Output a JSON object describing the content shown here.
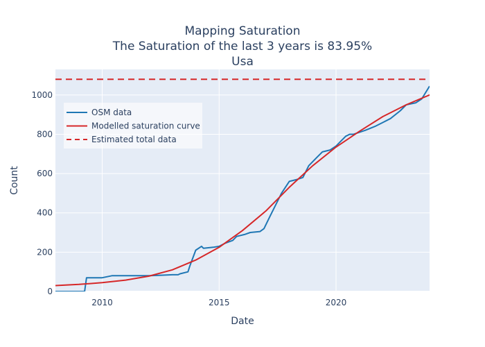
{
  "chart_data": {
    "type": "line",
    "title": [
      "Mapping Saturation",
      "The Saturation of the last 3 years is 83.95%",
      "Usa"
    ],
    "xlabel": "Date",
    "ylabel": "Count",
    "xlim": [
      "2008-01-01",
      "2024-01-01"
    ],
    "ylim": [
      0,
      1130
    ],
    "xticks": [
      {
        "label": "2010",
        "date": "2010-01-01"
      },
      {
        "label": "2015",
        "date": "2015-01-01"
      },
      {
        "label": "2020",
        "date": "2020-01-01"
      }
    ],
    "yticks": [
      0,
      200,
      400,
      600,
      800,
      1000
    ],
    "grid": true,
    "legend": "top-left",
    "series": [
      {
        "name": "OSM data",
        "color": "#1f77b4",
        "style": "solid",
        "x": [
          "2008-01-01",
          "2009-04-01",
          "2009-05-01",
          "2010-01-01",
          "2010-06-01",
          "2011-01-01",
          "2011-06-01",
          "2012-01-01",
          "2012-06-01",
          "2013-01-01",
          "2013-04-01",
          "2013-05-01",
          "2013-09-01",
          "2013-10-01",
          "2014-01-01",
          "2014-04-01",
          "2014-05-01",
          "2014-10-01",
          "2015-01-01",
          "2015-04-01",
          "2015-08-01",
          "2015-10-01",
          "2016-02-01",
          "2016-05-01",
          "2016-10-01",
          "2016-12-01",
          "2017-03-01",
          "2017-06-01",
          "2017-09-01",
          "2018-01-01",
          "2018-05-01",
          "2018-08-01",
          "2018-11-01",
          "2019-03-01",
          "2019-06-01",
          "2019-10-01",
          "2020-01-01",
          "2020-06-01",
          "2020-08-01",
          "2020-10-01",
          "2021-01-01",
          "2021-04-01",
          "2021-09-01",
          "2022-01-01",
          "2022-05-01",
          "2022-10-01",
          "2023-01-01",
          "2023-06-01",
          "2023-09-01",
          "2024-01-01"
        ],
        "y": [
          0,
          0,
          70,
          70,
          80,
          80,
          80,
          80,
          82,
          85,
          85,
          90,
          100,
          130,
          210,
          230,
          220,
          225,
          230,
          245,
          260,
          280,
          290,
          300,
          305,
          320,
          380,
          440,
          500,
          560,
          570,
          580,
          640,
          680,
          710,
          720,
          740,
          790,
          800,
          800,
          810,
          820,
          840,
          860,
          880,
          920,
          950,
          960,
          980,
          1045
        ]
      },
      {
        "name": "Modelled saturation curve",
        "color": "#d62728",
        "style": "solid",
        "x": [
          "2008-01-01",
          "2009-01-01",
          "2010-01-01",
          "2011-01-01",
          "2012-01-01",
          "2013-01-01",
          "2014-01-01",
          "2015-01-01",
          "2016-01-01",
          "2017-01-01",
          "2018-01-01",
          "2019-01-01",
          "2020-01-01",
          "2021-01-01",
          "2022-01-01",
          "2023-01-01",
          "2024-01-01"
        ],
        "y": [
          30,
          36,
          45,
          58,
          78,
          110,
          160,
          225,
          310,
          410,
          530,
          640,
          735,
          815,
          890,
          950,
          1000
        ]
      },
      {
        "name": "Estimated total data",
        "color": "#d62728",
        "style": "dashed",
        "x": [
          "2008-01-01",
          "2024-01-01"
        ],
        "y": [
          1080,
          1080
        ]
      }
    ]
  },
  "colors": {
    "plot_bg": "#e5ecf6",
    "grid": "#ffffff",
    "text": "#2a3f5f",
    "legend_bg": "rgba(255,255,255,0.6)"
  }
}
